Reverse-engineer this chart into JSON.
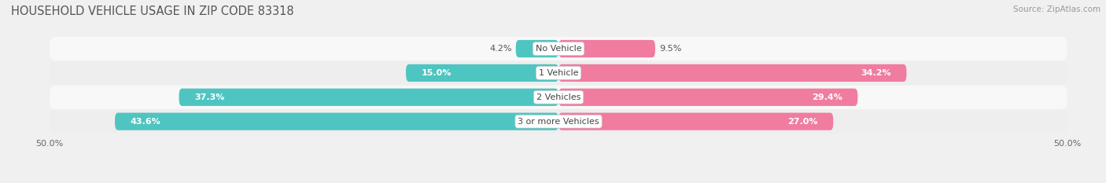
{
  "title": "HOUSEHOLD VEHICLE USAGE IN ZIP CODE 83318",
  "source": "Source: ZipAtlas.com",
  "categories": [
    "No Vehicle",
    "1 Vehicle",
    "2 Vehicles",
    "3 or more Vehicles"
  ],
  "owner_values": [
    4.2,
    15.0,
    37.3,
    43.6
  ],
  "renter_values": [
    9.5,
    34.2,
    29.4,
    27.0
  ],
  "owner_color": "#4EC5C1",
  "renter_color": "#F07CA0",
  "axis_limit": 50.0,
  "bar_height": 0.72,
  "background_color": "#f0f0f0",
  "row_bg_light": "#f8f8f8",
  "row_bg_dark": "#eeeeee",
  "title_fontsize": 10.5,
  "label_fontsize": 8.0,
  "value_fontsize": 8.0,
  "tick_fontsize": 8.0,
  "source_fontsize": 7.5,
  "legend_fontsize": 8.5
}
